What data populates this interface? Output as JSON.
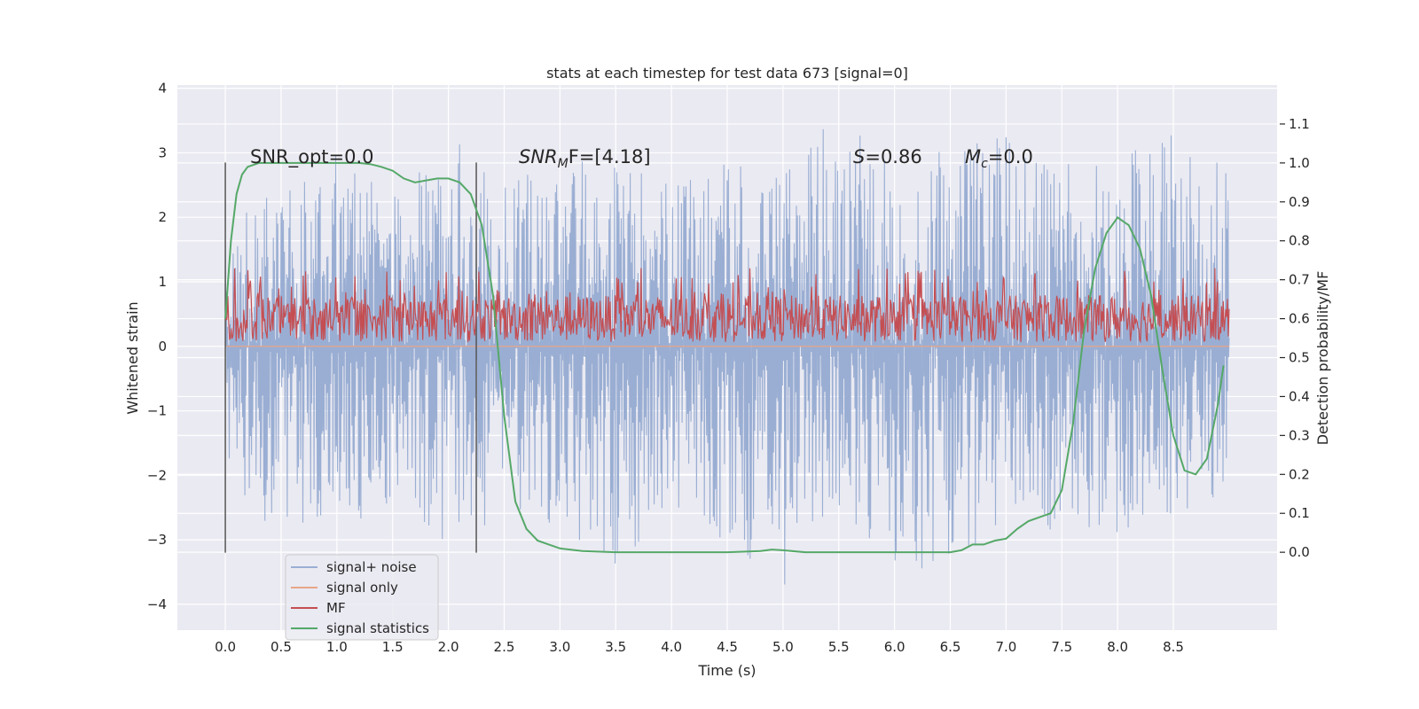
{
  "chart_data": {
    "type": "line",
    "title": "stats at each timestep for test data 673 [signal=0]",
    "xlabel": "Time (s)",
    "ylabel_left": "Whitened strain",
    "ylabel_right": "Detection probability/MF",
    "xlim": [
      -0.43,
      9.43
    ],
    "ylim_left": [
      -4.4,
      4.05
    ],
    "ylim_right": [
      -0.2,
      1.2
    ],
    "xticks": [
      "0.0",
      "0.5",
      "1.0",
      "1.5",
      "2.0",
      "2.5",
      "3.0",
      "3.5",
      "4.0",
      "4.5",
      "5.0",
      "5.5",
      "6.0",
      "6.5",
      "7.0",
      "7.5",
      "8.0",
      "8.5"
    ],
    "yticks_left": [
      "4",
      "3",
      "2",
      "1",
      "0",
      "−1",
      "−2",
      "−3",
      "−4"
    ],
    "yticks_right": [
      "1.1",
      "1.0",
      "0.9",
      "0.8",
      "0.7",
      "0.6",
      "0.5",
      "0.4",
      "0.3",
      "0.2",
      "0.1",
      "0.0"
    ],
    "grid": true,
    "legend_position": "lower-left",
    "annotations": {
      "snr_opt": "SNR_opt=0.0",
      "snr_mf_base": "SNR",
      "snr_mf_sub": "M",
      "snr_mf_rest": "F=[4.18]",
      "s_var": "S",
      "s_value": "=0.86",
      "mc_base": "M",
      "mc_sub": "c",
      "mc_value": "=0.0"
    },
    "vlines_x": [
      0.0,
      2.25
    ],
    "series": [
      {
        "name": "signal+ noise",
        "color": "#9aaed3",
        "axis": "left",
        "envelope_x": [
          0.0,
          0.5,
          1.0,
          1.5,
          2.0,
          2.5,
          3.0,
          3.5,
          4.0,
          4.5,
          5.0,
          5.5,
          6.0,
          6.5,
          7.0,
          7.5,
          8.0,
          8.5,
          9.0
        ],
        "upper": [
          2.0,
          2.5,
          3.0,
          2.3,
          3.3,
          2.5,
          3.0,
          2.8,
          2.6,
          2.9,
          2.7,
          3.7,
          2.7,
          3.2,
          3.3,
          2.9,
          3.0,
          3.4,
          2.8
        ],
        "lower": [
          -2.0,
          -3.0,
          -2.5,
          -2.9,
          -3.1,
          -2.6,
          -2.9,
          -3.6,
          -2.5,
          -3.1,
          -4.0,
          -2.6,
          -3.4,
          -3.5,
          -2.7,
          -2.9,
          -2.9,
          -2.8,
          -2.2
        ]
      },
      {
        "name": "signal only",
        "color": "#e8a688",
        "axis": "left",
        "x": [
          0.0,
          9.0
        ],
        "y": [
          0.0,
          0.0
        ]
      },
      {
        "name": "MF",
        "color": "#c44e52",
        "axis": "right",
        "band_low": 0.54,
        "band_high": 0.66,
        "peak": 0.73
      },
      {
        "name": "signal statistics",
        "color": "#55a868",
        "axis": "right",
        "x": [
          0.0,
          0.05,
          0.1,
          0.15,
          0.2,
          0.3,
          0.5,
          0.8,
          1.0,
          1.2,
          1.3,
          1.4,
          1.5,
          1.6,
          1.7,
          1.8,
          1.9,
          2.0,
          2.1,
          2.2,
          2.3,
          2.4,
          2.5,
          2.6,
          2.7,
          2.8,
          2.9,
          3.0,
          3.2,
          3.5,
          4.0,
          4.5,
          4.8,
          4.9,
          5.0,
          5.2,
          5.5,
          6.0,
          6.5,
          6.6,
          6.7,
          6.8,
          6.9,
          7.0,
          7.1,
          7.2,
          7.3,
          7.4,
          7.5,
          7.6,
          7.7,
          7.8,
          7.9,
          8.0,
          8.1,
          8.2,
          8.3,
          8.4,
          8.5,
          8.6,
          8.7,
          8.8,
          8.9,
          8.95
        ],
        "y": [
          0.6,
          0.8,
          0.92,
          0.97,
          0.99,
          1.0,
          1.0,
          1.0,
          1.0,
          1.0,
          0.997,
          0.99,
          0.98,
          0.96,
          0.95,
          0.955,
          0.96,
          0.96,
          0.95,
          0.92,
          0.84,
          0.66,
          0.35,
          0.13,
          0.06,
          0.03,
          0.02,
          0.01,
          0.003,
          0.0,
          0.0,
          0.0,
          0.003,
          0.007,
          0.005,
          0.0,
          0.0,
          0.0,
          0.0,
          0.005,
          0.02,
          0.02,
          0.03,
          0.035,
          0.06,
          0.08,
          0.09,
          0.1,
          0.16,
          0.33,
          0.57,
          0.73,
          0.82,
          0.86,
          0.84,
          0.78,
          0.66,
          0.47,
          0.3,
          0.21,
          0.2,
          0.24,
          0.38,
          0.48
        ]
      }
    ]
  }
}
